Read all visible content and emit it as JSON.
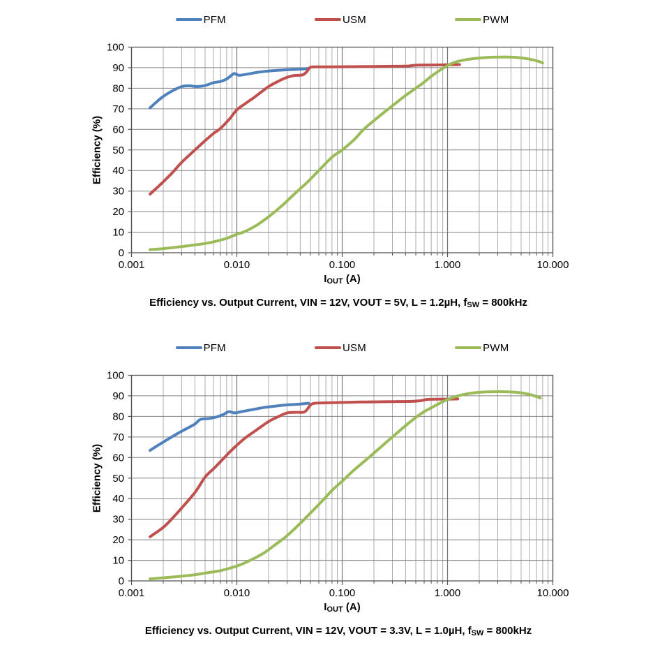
{
  "page": {
    "background": "#ffffff"
  },
  "colors": {
    "pfm": "#4F81BD",
    "usm": "#C0504D",
    "pwm": "#9BBB59",
    "grid_minor": "#ABABAB",
    "grid_major_vertical": "#757575",
    "grid_horizontal": "#828282",
    "plot_border": "#555555",
    "text": "#000000"
  },
  "chart_data": [
    {
      "type": "line",
      "title": "Efficiency vs. Output Current, VIN = 12V, VOUT = 5V, L = 1.2µH, fSW = 800kHz",
      "caption_segments": [
        {
          "text": "Efficiency vs. Output Current, VIN = 12V, VOUT = 5V, L = 1.2µH, f"
        },
        {
          "text": "SW",
          "sub": true
        },
        {
          "text": " = 800kHz"
        }
      ],
      "xlabel": "IOUT (A)",
      "xlabel_segments": [
        {
          "text": "I"
        },
        {
          "text": "OUT",
          "sub": true
        },
        {
          "text": " (A)"
        }
      ],
      "ylabel": "Efficiency (%)",
      "x_scale": "log",
      "xlim": [
        0.001,
        10
      ],
      "ylim": [
        0,
        100
      ],
      "x_tick_labels": [
        "0.001",
        "0.010",
        "0.100",
        "1.000",
        "10.000"
      ],
      "y_ticks": [
        0,
        10,
        20,
        30,
        40,
        50,
        60,
        70,
        80,
        90,
        100
      ],
      "grid": "horizontal-majors + log-x majors and minors",
      "legend_position": "top-center",
      "series": [
        {
          "name": "PFM",
          "color": "#4F81BD",
          "points": [
            [
              0.0015,
              70.5
            ],
            [
              0.0017,
              73
            ],
            [
              0.002,
              76
            ],
            [
              0.0025,
              79
            ],
            [
              0.003,
              80.8
            ],
            [
              0.0035,
              81.2
            ],
            [
              0.0042,
              80.8
            ],
            [
              0.005,
              81.3
            ],
            [
              0.006,
              82.7
            ],
            [
              0.007,
              83.3
            ],
            [
              0.008,
              84.5
            ],
            [
              0.009,
              86.5
            ],
            [
              0.0095,
              87.2
            ],
            [
              0.0105,
              86.3
            ],
            [
              0.013,
              87
            ],
            [
              0.016,
              87.8
            ],
            [
              0.02,
              88.4
            ],
            [
              0.026,
              88.8
            ],
            [
              0.033,
              89.1
            ],
            [
              0.04,
              89.3
            ],
            [
              0.047,
              89.6
            ]
          ]
        },
        {
          "name": "USM",
          "color": "#C0504D",
          "points": [
            [
              0.0015,
              28.5
            ],
            [
              0.002,
              34.5
            ],
            [
              0.0025,
              39.5
            ],
            [
              0.003,
              44
            ],
            [
              0.004,
              50
            ],
            [
              0.005,
              54.5
            ],
            [
              0.006,
              58
            ],
            [
              0.007,
              60.5
            ],
            [
              0.0085,
              65
            ],
            [
              0.01,
              69.5
            ],
            [
              0.012,
              72.5
            ],
            [
              0.015,
              76
            ],
            [
              0.02,
              80.8
            ],
            [
              0.025,
              83.5
            ],
            [
              0.03,
              85.3
            ],
            [
              0.035,
              86.2
            ],
            [
              0.042,
              86.5
            ],
            [
              0.046,
              88
            ],
            [
              0.05,
              90.2
            ],
            [
              0.06,
              90.4
            ],
            [
              0.08,
              90.4
            ],
            [
              0.12,
              90.5
            ],
            [
              0.2,
              90.6
            ],
            [
              0.3,
              90.7
            ],
            [
              0.42,
              90.8
            ],
            [
              0.5,
              91.2
            ],
            [
              0.7,
              91.3
            ],
            [
              1.0,
              91.4
            ],
            [
              1.3,
              91.5
            ]
          ]
        },
        {
          "name": "PWM",
          "color": "#9BBB59",
          "points": [
            [
              0.0015,
              1.5
            ],
            [
              0.002,
              2
            ],
            [
              0.003,
              3
            ],
            [
              0.004,
              3.8
            ],
            [
              0.005,
              4.5
            ],
            [
              0.006,
              5.3
            ],
            [
              0.008,
              7
            ],
            [
              0.01,
              9
            ],
            [
              0.0115,
              10
            ],
            [
              0.015,
              13
            ],
            [
              0.02,
              17.5
            ],
            [
              0.027,
              23
            ],
            [
              0.035,
              28.5
            ],
            [
              0.046,
              34
            ],
            [
              0.06,
              40
            ],
            [
              0.08,
              46.5
            ],
            [
              0.1,
              50
            ],
            [
              0.13,
              55
            ],
            [
              0.16,
              60
            ],
            [
              0.22,
              66
            ],
            [
              0.3,
              71.5
            ],
            [
              0.4,
              76.5
            ],
            [
              0.5,
              80
            ],
            [
              0.6,
              83
            ],
            [
              0.7,
              85.8
            ],
            [
              0.85,
              88.8
            ],
            [
              1.0,
              91
            ],
            [
              1.2,
              92.8
            ],
            [
              1.5,
              93.9
            ],
            [
              2,
              94.7
            ],
            [
              2.7,
              95.1
            ],
            [
              3.5,
              95.2
            ],
            [
              4.5,
              95
            ],
            [
              5.5,
              94.5
            ],
            [
              6.5,
              93.8
            ],
            [
              7.5,
              92.9
            ],
            [
              8,
              92.3
            ]
          ]
        }
      ]
    },
    {
      "type": "line",
      "title": "Efficiency vs. Output Current, VIN = 12V, VOUT = 3.3V, L = 1.0µH, fSW = 800kHz",
      "caption_segments": [
        {
          "text": "Efficiency vs. Output Current, VIN = 12V, VOUT = 3.3V, L = 1.0µH, f"
        },
        {
          "text": "SW",
          "sub": true
        },
        {
          "text": " = 800kHz"
        }
      ],
      "xlabel": "IOUT (A)",
      "xlabel_segments": [
        {
          "text": "I"
        },
        {
          "text": "OUT",
          "sub": true
        },
        {
          "text": " (A)"
        }
      ],
      "ylabel": "Efficiency (%)",
      "x_scale": "log",
      "xlim": [
        0.001,
        10
      ],
      "ylim": [
        0,
        100
      ],
      "x_tick_labels": [
        "0.001",
        "0.010",
        "0.100",
        "1.000",
        "10.000"
      ],
      "y_ticks": [
        0,
        10,
        20,
        30,
        40,
        50,
        60,
        70,
        80,
        90,
        100
      ],
      "grid": "horizontal-majors + log-x majors and minors",
      "legend_position": "top-center",
      "series": [
        {
          "name": "PFM",
          "color": "#4F81BD",
          "points": [
            [
              0.0015,
              63.5
            ],
            [
              0.002,
              67.5
            ],
            [
              0.0025,
              70.5
            ],
            [
              0.003,
              72.8
            ],
            [
              0.004,
              76.3
            ],
            [
              0.0045,
              78.5
            ],
            [
              0.0055,
              79
            ],
            [
              0.0065,
              79.8
            ],
            [
              0.0075,
              81
            ],
            [
              0.0084,
              82.3
            ],
            [
              0.0095,
              81.7
            ],
            [
              0.011,
              82.3
            ],
            [
              0.014,
              83.3
            ],
            [
              0.018,
              84.3
            ],
            [
              0.023,
              85
            ],
            [
              0.03,
              85.6
            ],
            [
              0.04,
              86
            ],
            [
              0.048,
              86.4
            ]
          ]
        },
        {
          "name": "USM",
          "color": "#C0504D",
          "points": [
            [
              0.0015,
              21.5
            ],
            [
              0.002,
              26
            ],
            [
              0.0025,
              31
            ],
            [
              0.003,
              35.5
            ],
            [
              0.004,
              43
            ],
            [
              0.005,
              50.5
            ],
            [
              0.006,
              54.5
            ],
            [
              0.007,
              58
            ],
            [
              0.0085,
              62.5
            ],
            [
              0.01,
              66
            ],
            [
              0.012,
              69.5
            ],
            [
              0.015,
              73
            ],
            [
              0.02,
              77.5
            ],
            [
              0.025,
              80
            ],
            [
              0.03,
              81.7
            ],
            [
              0.037,
              82
            ],
            [
              0.044,
              82.2
            ],
            [
              0.05,
              85.5
            ],
            [
              0.055,
              86.4
            ],
            [
              0.07,
              86.6
            ],
            [
              0.1,
              86.8
            ],
            [
              0.15,
              87
            ],
            [
              0.22,
              87.1
            ],
            [
              0.3,
              87.2
            ],
            [
              0.45,
              87.3
            ],
            [
              0.55,
              87.6
            ],
            [
              0.65,
              88.3
            ],
            [
              0.8,
              88.4
            ],
            [
              1.0,
              88.4
            ],
            [
              1.25,
              88.5
            ]
          ]
        },
        {
          "name": "PWM",
          "color": "#9BBB59",
          "points": [
            [
              0.0015,
              1
            ],
            [
              0.002,
              1.5
            ],
            [
              0.003,
              2.3
            ],
            [
              0.004,
              3
            ],
            [
              0.005,
              3.8
            ],
            [
              0.007,
              5
            ],
            [
              0.009,
              6.5
            ],
            [
              0.011,
              8
            ],
            [
              0.014,
              10.5
            ],
            [
              0.018,
              13.5
            ],
            [
              0.023,
              17.5
            ],
            [
              0.03,
              22
            ],
            [
              0.04,
              28
            ],
            [
              0.05,
              33
            ],
            [
              0.065,
              39
            ],
            [
              0.08,
              44
            ],
            [
              0.1,
              48.5
            ],
            [
              0.13,
              54
            ],
            [
              0.17,
              59
            ],
            [
              0.22,
              64
            ],
            [
              0.3,
              70
            ],
            [
              0.4,
              75.5
            ],
            [
              0.5,
              79.5
            ],
            [
              0.6,
              82.3
            ],
            [
              0.72,
              84.5
            ],
            [
              0.85,
              86.5
            ],
            [
              1.0,
              88.2
            ],
            [
              1.2,
              89.7
            ],
            [
              1.5,
              90.9
            ],
            [
              2,
              91.7
            ],
            [
              2.7,
              92
            ],
            [
              3.5,
              92
            ],
            [
              4.5,
              91.7
            ],
            [
              5.5,
              91.1
            ],
            [
              6.5,
              90.2
            ],
            [
              7.6,
              89
            ]
          ]
        }
      ]
    }
  ]
}
